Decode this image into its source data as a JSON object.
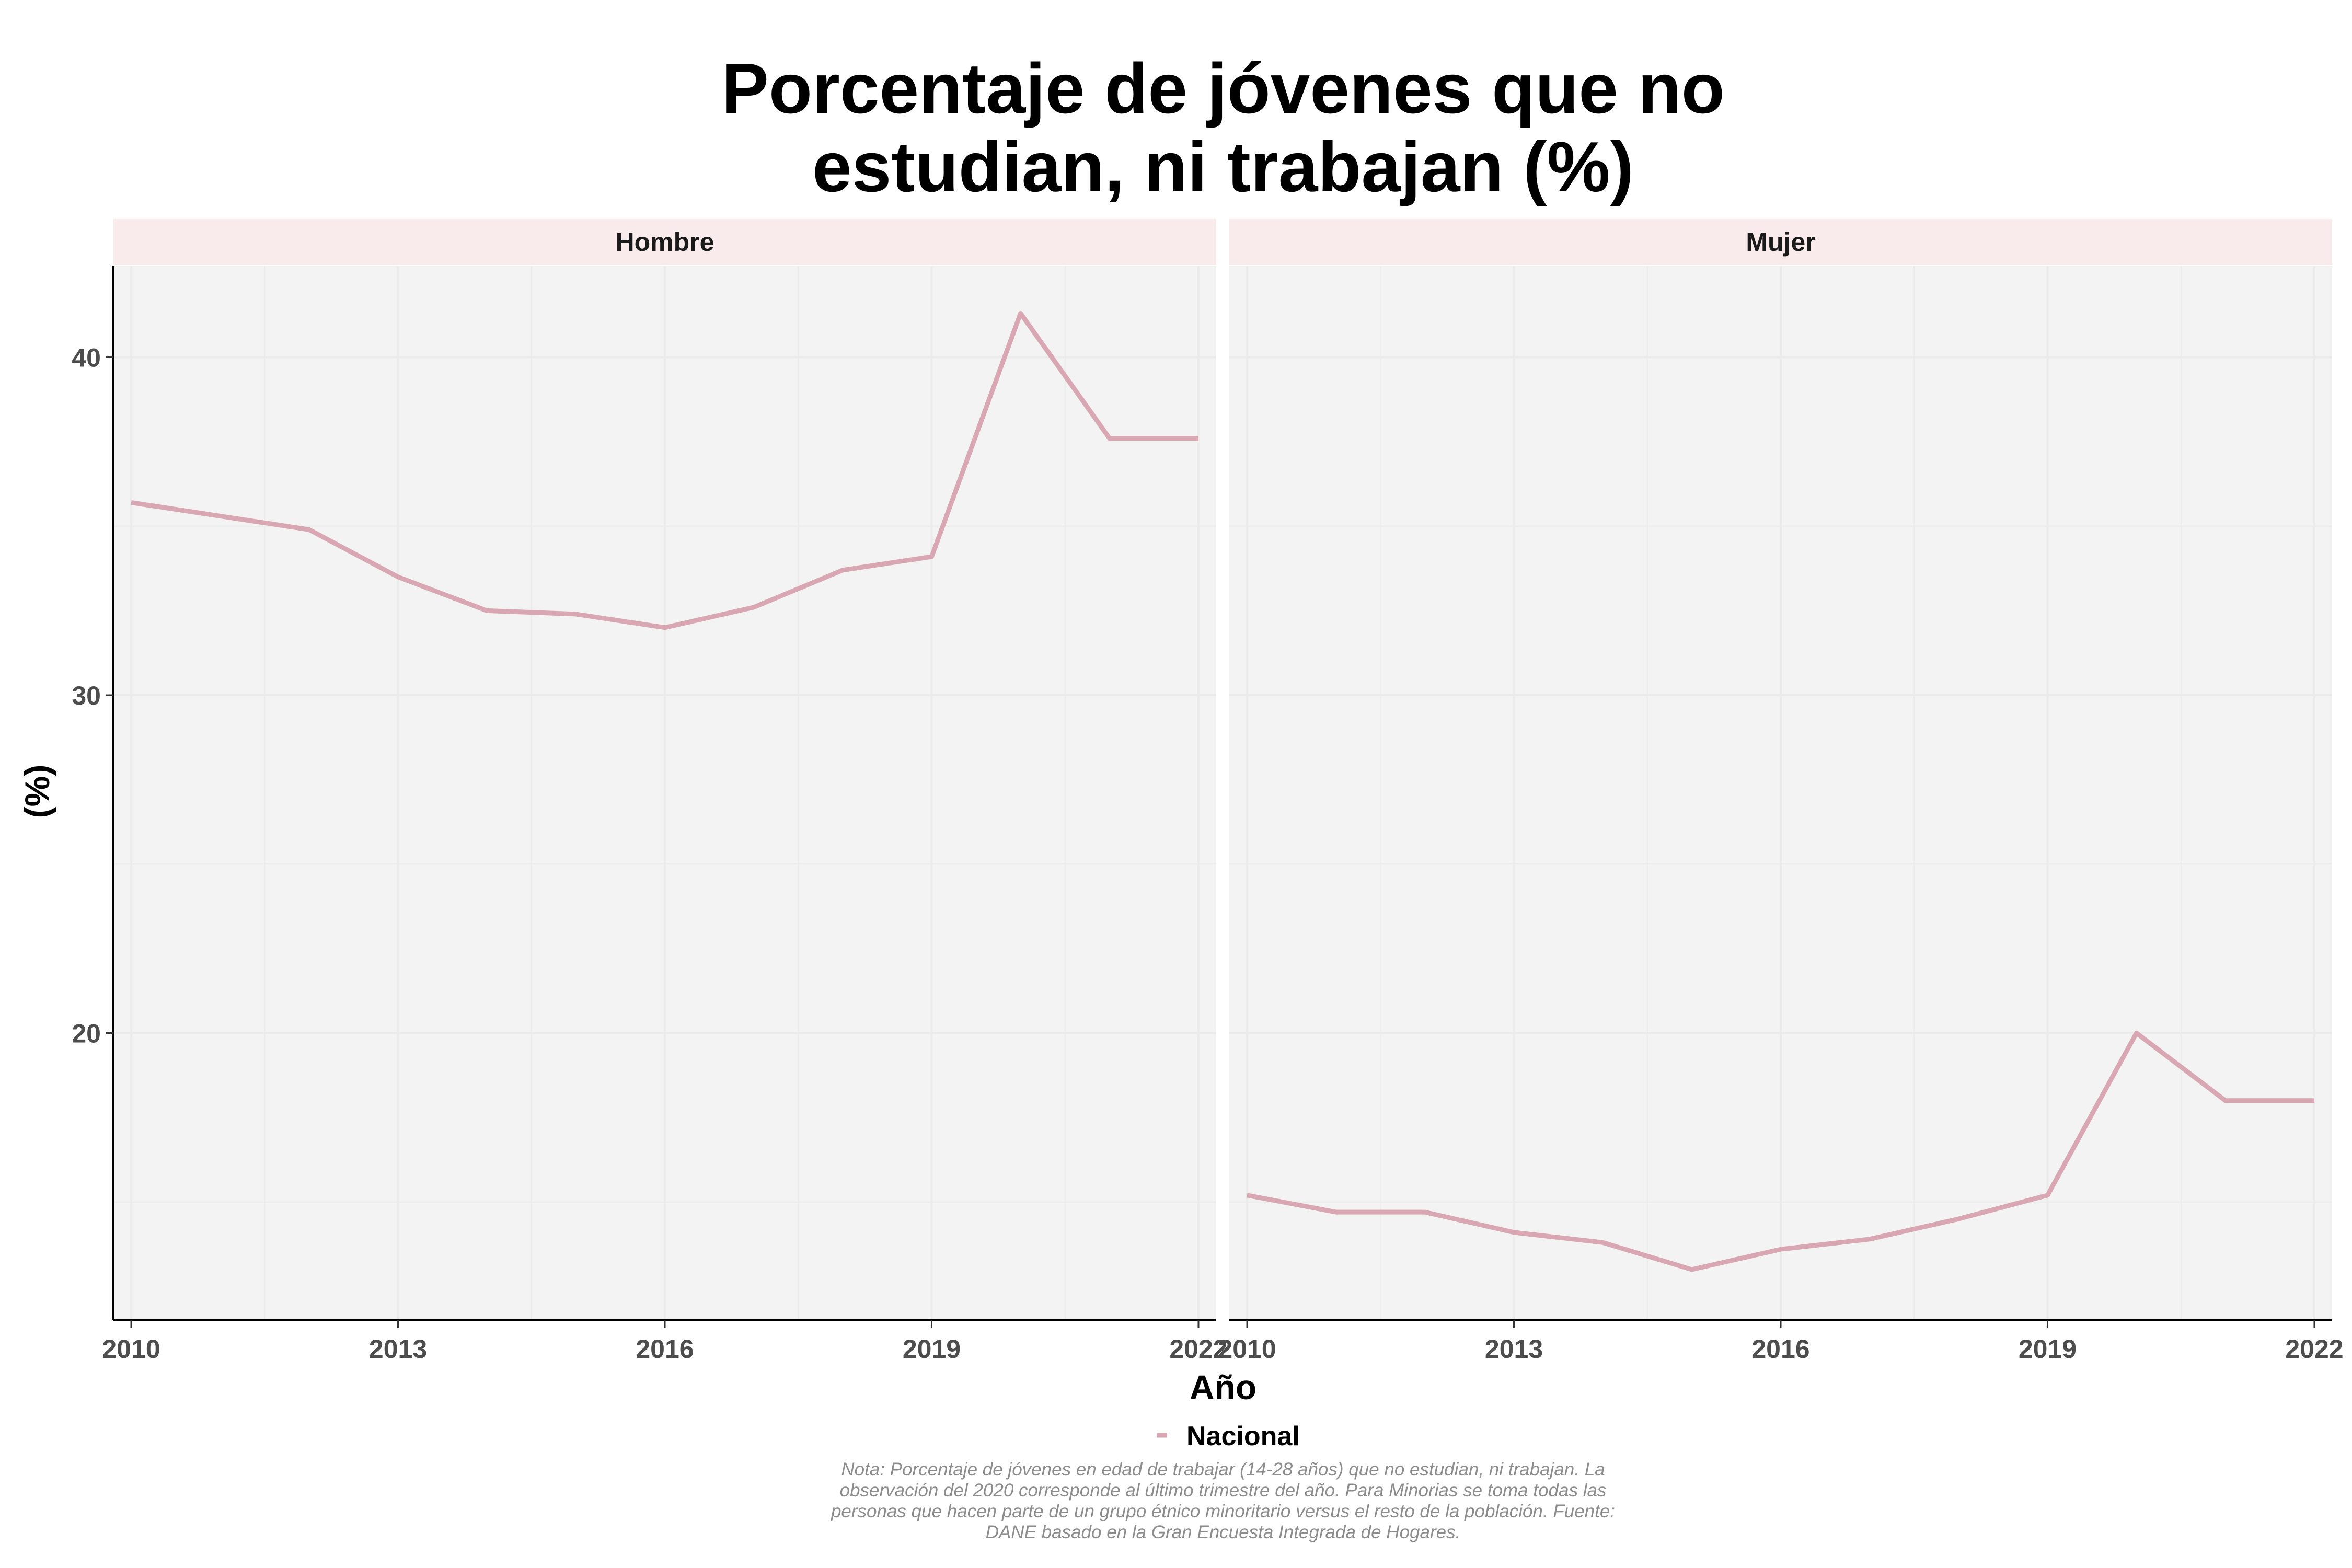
{
  "chart_data": {
    "type": "line",
    "title_lines": [
      "Porcentaje de jóvenes que no",
      "estudian, ni trabajan (%)"
    ],
    "xlabel": "Año",
    "ylabel": "(%)",
    "xlim": [
      2009.8,
      2022.2
    ],
    "ylim": [
      11.5,
      42.7
    ],
    "x_ticks": [
      2010,
      2013,
      2016,
      2019,
      2022
    ],
    "y_ticks": [
      20,
      30,
      40
    ],
    "grid": true,
    "legend": {
      "position": "bottom",
      "entries": [
        {
          "name": "Nacional",
          "color": "#d8a7b3"
        }
      ]
    },
    "x": [
      2010,
      2011,
      2012,
      2013,
      2014,
      2015,
      2016,
      2017,
      2018,
      2019,
      2020,
      2021,
      2022
    ],
    "panels": [
      {
        "label": "Hombre",
        "series": [
          {
            "name": "Nacional",
            "values": [
              35.7,
              35.3,
              34.9,
              33.5,
              32.5,
              32.4,
              32.0,
              32.6,
              33.7,
              34.1,
              41.3,
              37.6,
              37.6
            ]
          }
        ]
      },
      {
        "label": "Mujer",
        "series": [
          {
            "name": "Nacional",
            "values": [
              15.2,
              14.7,
              14.7,
              14.1,
              13.8,
              13.0,
              13.6,
              13.9,
              14.5,
              15.2,
              20.0,
              18.0,
              18.0
            ]
          }
        ]
      }
    ],
    "note_lines": [
      "Nota: Porcentaje de jóvenes en edad de trabajar (14-28 años) que no estudian, ni trabajan. La",
      "observación del 2020 corresponde al último trimestre del año. Para Minorias se toma todas las",
      "personas que hacen parte de un grupo étnico minoritario versus el resto de la población. Fuente:",
      "DANE basado en la Gran Encuesta Integrada de Hogares."
    ]
  },
  "colors": {
    "line": "#d8a7b3",
    "panel_bg": "#f3f3f3",
    "strip_bg": "#f9ebeb",
    "grid": "#ebebeb",
    "axis": "#000000"
  }
}
